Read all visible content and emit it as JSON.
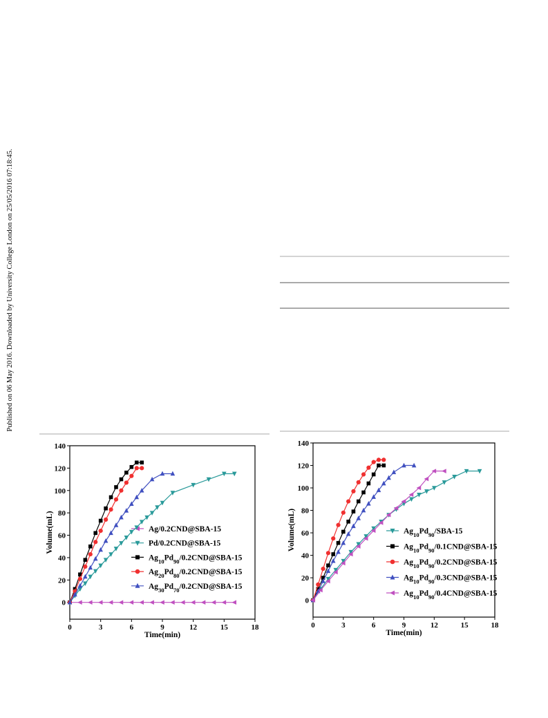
{
  "side_note": "Published on 06 May 2016. Downloaded by University College London on 25/05/2016 07:18:45.",
  "chart_data": [
    {
      "type": "line",
      "xlabel": "Time(min)",
      "ylabel": "Volume(mL)",
      "xlim": [
        0,
        18
      ],
      "ylim": [
        -15,
        140
      ],
      "xticks": [
        0,
        3,
        6,
        9,
        12,
        15,
        18
      ],
      "yticks": [
        0,
        20,
        40,
        60,
        80,
        100,
        120,
        140
      ],
      "series": [
        {
          "name": "Ag/0.2CND@SBA-15",
          "color": "#c050c0",
          "marker": "triangle-left",
          "x": [
            0,
            1,
            2,
            3,
            4,
            5,
            6,
            7,
            8,
            9,
            10,
            11,
            12,
            13,
            14,
            15,
            16
          ],
          "values": [
            0,
            0,
            0,
            0,
            0,
            0,
            0,
            0,
            0,
            0,
            0,
            0,
            0,
            0,
            0,
            0,
            0
          ]
        },
        {
          "name": "Pd/0.2CND@SBA-15",
          "color": "#2a9a9a",
          "marker": "triangle-down",
          "x": [
            0,
            0.5,
            1,
            1.5,
            2,
            2.5,
            3,
            3.5,
            4,
            4.5,
            5,
            5.5,
            6,
            6.5,
            7,
            7.5,
            8,
            8.5,
            9,
            10,
            12,
            13.5,
            15,
            16
          ],
          "values": [
            0,
            6,
            12,
            17,
            23,
            28,
            33,
            38,
            43,
            48,
            53,
            58,
            63,
            67,
            72,
            76,
            80,
            85,
            89,
            98,
            105,
            110,
            115,
            115
          ]
        },
        {
          "name": "Ag10Pd90/0.2CND@SBA-15",
          "color": "#000000",
          "marker": "square",
          "x": [
            0,
            0.5,
            1,
            1.5,
            2,
            2.5,
            3,
            3.5,
            4,
            4.5,
            5,
            5.5,
            6,
            6.5,
            7
          ],
          "values": [
            0,
            12,
            25,
            38,
            50,
            62,
            73,
            84,
            94,
            103,
            110,
            116,
            121,
            125,
            125
          ]
        },
        {
          "name": "Ag20Pd80/0.2CND@SBA-15",
          "color": "#f03030",
          "marker": "circle",
          "x": [
            0,
            0.5,
            1,
            1.5,
            2,
            2.5,
            3,
            3.5,
            4,
            4.5,
            5,
            5.5,
            6,
            6.5,
            7
          ],
          "values": [
            0,
            10,
            21,
            32,
            43,
            54,
            64,
            74,
            83,
            92,
            100,
            107,
            113,
            120,
            120
          ]
        },
        {
          "name": "Ag30Pd70/0.2CND@SBA-15",
          "color": "#4050c0",
          "marker": "triangle-up",
          "x": [
            0,
            0.5,
            1,
            1.5,
            2,
            2.5,
            3,
            3.5,
            4,
            4.5,
            5,
            5.5,
            6,
            6.5,
            7,
            8,
            9,
            10
          ],
          "values": [
            0,
            7,
            15,
            23,
            31,
            39,
            47,
            55,
            62,
            69,
            76,
            82,
            88,
            94,
            100,
            110,
            115,
            115
          ]
        }
      ]
    },
    {
      "type": "line",
      "xlabel": "Time(min)",
      "ylabel": "Volume(mL)",
      "xlim": [
        0,
        18
      ],
      "ylim": [
        -15,
        140
      ],
      "xticks": [
        0,
        3,
        6,
        9,
        12,
        15,
        18
      ],
      "yticks": [
        0,
        20,
        40,
        60,
        80,
        100,
        120,
        140
      ],
      "series": [
        {
          "name": "Ag10Pd90/SBA-15",
          "color": "#2a9a9a",
          "marker": "triangle-down",
          "x": [
            0,
            0.75,
            1.5,
            2.25,
            3,
            3.75,
            4.5,
            5.25,
            6,
            6.75,
            7.5,
            8.25,
            9,
            9.75,
            10.5,
            11.25,
            12,
            13,
            14,
            15.2,
            16.5
          ],
          "values": [
            0,
            10,
            19,
            27,
            35,
            43,
            50,
            57,
            64,
            70,
            76,
            81,
            86,
            90,
            94,
            97,
            100,
            105,
            110,
            115,
            115
          ]
        },
        {
          "name": "Ag10Pd90/0.1CND@SBA-15",
          "color": "#000000",
          "marker": "square",
          "x": [
            0,
            0.5,
            1,
            1.5,
            2,
            2.5,
            3,
            3.5,
            4,
            4.5,
            5,
            5.5,
            6,
            6.5,
            7
          ],
          "values": [
            0,
            10,
            20,
            31,
            41,
            51,
            61,
            70,
            79,
            88,
            96,
            104,
            112,
            120,
            120
          ]
        },
        {
          "name": "Ag10Pd90/0.2CND@SBA-15",
          "color": "#f03030",
          "marker": "circle",
          "x": [
            0,
            0.5,
            1,
            1.5,
            2,
            2.5,
            3,
            3.5,
            4,
            4.5,
            5,
            5.5,
            6,
            6.5,
            7
          ],
          "values": [
            0,
            14,
            28,
            42,
            55,
            67,
            78,
            88,
            97,
            105,
            112,
            118,
            123,
            125,
            125
          ]
        },
        {
          "name": "Ag10Pd90/0.3CND@SBA-15",
          "color": "#4050c0",
          "marker": "triangle-up",
          "x": [
            0,
            0.5,
            1,
            1.5,
            2,
            2.5,
            3,
            3.5,
            4,
            4.5,
            5,
            5.5,
            6,
            6.5,
            7,
            7.5,
            8,
            9,
            10
          ],
          "values": [
            0,
            8,
            17,
            26,
            35,
            43,
            51,
            59,
            66,
            73,
            80,
            86,
            92,
            98,
            104,
            109,
            114,
            120,
            120
          ]
        },
        {
          "name": "Ag10Pd90/0.4CND@SBA-15",
          "color": "#c050c0",
          "marker": "triangle-left",
          "x": [
            0,
            0.75,
            1.5,
            2.25,
            3,
            3.75,
            4.5,
            5.25,
            6,
            6.75,
            7.5,
            8.25,
            9,
            9.75,
            10.5,
            11.25,
            12,
            13
          ],
          "values": [
            0,
            9,
            17,
            25,
            33,
            41,
            48,
            55,
            62,
            69,
            76,
            82,
            88,
            94,
            100,
            108,
            115,
            115
          ]
        }
      ]
    }
  ]
}
